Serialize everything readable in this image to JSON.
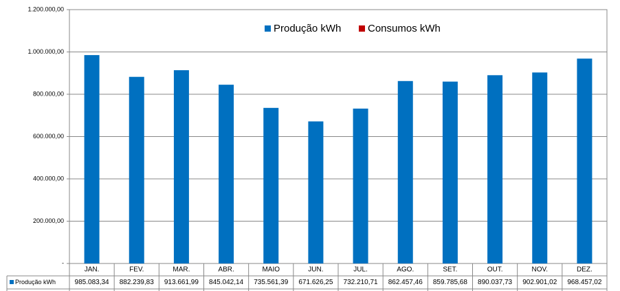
{
  "chart_data": {
    "type": "bar",
    "categories": [
      "JAN.",
      "FEV.",
      "MAR.",
      "ABR.",
      "MAIO",
      "JUN.",
      "JUL.",
      "AGO.",
      "SET.",
      "OUT.",
      "NOV.",
      "DEZ."
    ],
    "series": [
      {
        "name": "Produção kWh",
        "color": "#0070c0",
        "values": [
          985083.34,
          882239.83,
          913661.99,
          845042.14,
          735561.39,
          671626.25,
          732210.71,
          862457.46,
          859785.68,
          890037.73,
          902901.02,
          968457.02
        ],
        "value_labels": [
          "985.083,34",
          "882.239,83",
          "913.661,99",
          "845.042,14",
          "735.561,39",
          "671.626,25",
          "732.210,71",
          "862.457,46",
          "859.785,68",
          "890.037,73",
          "902.901,02",
          "968.457,02"
        ]
      },
      {
        "name": "Consumos kWh",
        "color": "#c00000",
        "values": [
          null,
          null,
          null,
          null,
          null,
          null,
          null,
          null,
          null,
          null,
          null,
          null
        ]
      }
    ],
    "ylim": [
      0,
      1200000
    ],
    "yticks": [
      {
        "value": 0,
        "label": "-"
      },
      {
        "value": 200000,
        "label": "200.000,00"
      },
      {
        "value": 400000,
        "label": "400.000,00"
      },
      {
        "value": 600000,
        "label": "600.000,00"
      },
      {
        "value": 800000,
        "label": "800.000,00"
      },
      {
        "value": 1000000,
        "label": "1.000.000,00"
      },
      {
        "value": 1200000,
        "label": "1.200.000,00"
      }
    ],
    "grid": true,
    "legend": "top",
    "data_table": true
  }
}
